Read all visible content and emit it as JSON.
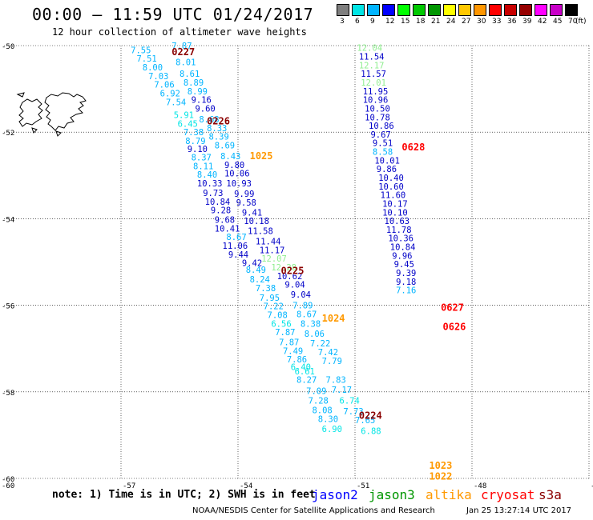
{
  "header": {
    "title": "00:00 – 11:59 UTC 01/24/2017",
    "subtitle": "12 hour collection of altimeter wave heights"
  },
  "legend": {
    "items": [
      {
        "label": "3",
        "color": "#7f7f7f"
      },
      {
        "label": "6",
        "color": "#00e5e5"
      },
      {
        "label": "9",
        "color": "#00b4ff"
      },
      {
        "label": "12",
        "color": "#0000ff"
      },
      {
        "label": "15",
        "color": "#00ff00"
      },
      {
        "label": "18",
        "color": "#00c800"
      },
      {
        "label": "21",
        "color": "#009600"
      },
      {
        "label": "24",
        "color": "#ffff00"
      },
      {
        "label": "27",
        "color": "#ffc800"
      },
      {
        "label": "30",
        "color": "#ff9600"
      },
      {
        "label": "33",
        "color": "#ff0000"
      },
      {
        "label": "36",
        "color": "#c80000"
      },
      {
        "label": "39",
        "color": "#960000"
      },
      {
        "label": "42",
        "color": "#ff00ff"
      },
      {
        "label": "45",
        "color": "#c800c8"
      },
      {
        "label": "70",
        "color": "#000000"
      }
    ],
    "unit": "(ft)"
  },
  "axes": {
    "lat_ticks": [
      {
        "label": "-50",
        "lat": -50
      },
      {
        "label": "-52",
        "lat": -52
      },
      {
        "label": "-54",
        "lat": -54
      },
      {
        "label": "-56",
        "lat": -56
      },
      {
        "label": "-58",
        "lat": -58
      },
      {
        "label": "-60",
        "lat": -60
      }
    ],
    "lon_ticks": [
      {
        "label": "-57",
        "lon": -57
      },
      {
        "label": "-54",
        "lon": -54
      },
      {
        "label": "-51",
        "lon": -51
      },
      {
        "label": "-48",
        "lon": -48
      },
      {
        "label": "-45",
        "lon": -45
      }
    ],
    "lat_range": [
      -60,
      -50
    ],
    "lon_range": [
      -60,
      -45
    ],
    "grid": true
  },
  "tracks": [
    {
      "satellite": "jason3",
      "label": "0227",
      "label_lat": -50.15,
      "label_lon": -55.7,
      "label_color": "#8b0000"
    },
    {
      "satellite": "jason3",
      "label": "0226",
      "label_lat": -51.75,
      "label_lon": -54.8,
      "label_color": "#8b0000"
    },
    {
      "satellite": "altika",
      "label": "1025",
      "label_lat": -52.55,
      "label_lon": -53.7,
      "label_color": "#ff9900"
    },
    {
      "satellite": "jason3",
      "label": "0225",
      "label_lat": -55.2,
      "label_lon": -52.9,
      "label_color": "#8b0000"
    },
    {
      "satellite": "altika",
      "label": "1024",
      "label_lat": -56.3,
      "label_lon": -51.85,
      "label_color": "#ff9900"
    },
    {
      "satellite": "jason3",
      "label": "0224",
      "label_lat": -58.55,
      "label_lon": -50.9,
      "label_color": "#8b0000"
    },
    {
      "satellite": "altika",
      "label": "1023",
      "label_lat": -59.7,
      "label_lon": -49.1,
      "label_color": "#ff9900"
    },
    {
      "satellite": "altika",
      "label": "1022",
      "label_lat": -59.95,
      "label_lon": -49.1,
      "label_color": "#ff9900"
    },
    {
      "satellite": "cryosat",
      "label": "0628",
      "label_lat": -52.35,
      "label_lon": -49.8,
      "label_color": "#ff0000"
    },
    {
      "satellite": "cryosat",
      "label": "0627",
      "label_lat": -56.05,
      "label_lon": -48.8,
      "label_color": "#ff0000"
    },
    {
      "satellite": "cryosat",
      "label": "0626",
      "label_lat": -56.5,
      "label_lon": -48.75,
      "label_color": "#ff0000"
    }
  ],
  "observations": [
    {
      "value": "7.87",
      "lat": -50.0,
      "lon": -55.7,
      "color": "#00b4ff"
    },
    {
      "value": "7.55",
      "lat": -50.1,
      "lon": -56.75,
      "color": "#00b4ff"
    },
    {
      "value": "7.51",
      "lat": -50.3,
      "lon": -56.6,
      "color": "#00b4ff"
    },
    {
      "value": "8.01",
      "lat": -50.38,
      "lon": -55.6,
      "color": "#00b4ff"
    },
    {
      "value": "8.00",
      "lat": -50.5,
      "lon": -56.45,
      "color": "#00b4ff"
    },
    {
      "value": "8.61",
      "lat": -50.65,
      "lon": -55.5,
      "color": "#00b4ff"
    },
    {
      "value": "7.03",
      "lat": -50.7,
      "lon": -56.3,
      "color": "#00b4ff"
    },
    {
      "value": "8.89",
      "lat": -50.85,
      "lon": -55.4,
      "color": "#00b4ff"
    },
    {
      "value": "7.06",
      "lat": -50.9,
      "lon": -56.15,
      "color": "#00b4ff"
    },
    {
      "value": "8.99",
      "lat": -51.05,
      "lon": -55.3,
      "color": "#00b4ff"
    },
    {
      "value": "6.92",
      "lat": -51.1,
      "lon": -56.0,
      "color": "#00b4ff"
    },
    {
      "value": "9.16",
      "lat": -51.25,
      "lon": -55.2,
      "color": "#0000c8"
    },
    {
      "value": "7.54",
      "lat": -51.3,
      "lon": -55.85,
      "color": "#00b4ff"
    },
    {
      "value": "9.60",
      "lat": -51.45,
      "lon": -55.1,
      "color": "#0000c8"
    },
    {
      "value": "5.91",
      "lat": -51.6,
      "lon": -55.65,
      "color": "#00e5e5"
    },
    {
      "value": "8.68",
      "lat": -51.7,
      "lon": -55.0,
      "color": "#00b4ff"
    },
    {
      "value": "6.45",
      "lat": -51.8,
      "lon": -55.55,
      "color": "#00e5e5"
    },
    {
      "value": "8.33",
      "lat": -51.9,
      "lon": -54.8,
      "color": "#00b4ff"
    },
    {
      "value": "7.38",
      "lat": -52.0,
      "lon": -55.4,
      "color": "#00b4ff"
    },
    {
      "value": "8.39",
      "lat": -52.1,
      "lon": -54.75,
      "color": "#00b4ff"
    },
    {
      "value": "8.79",
      "lat": -52.2,
      "lon": -55.35,
      "color": "#00b4ff"
    },
    {
      "value": "8.69",
      "lat": -52.3,
      "lon": -54.6,
      "color": "#00b4ff"
    },
    {
      "value": "9.10",
      "lat": -52.38,
      "lon": -55.3,
      "color": "#0000c8"
    },
    {
      "value": "8.43",
      "lat": -52.55,
      "lon": -54.45,
      "color": "#00b4ff"
    },
    {
      "value": "8.37",
      "lat": -52.58,
      "lon": -55.2,
      "color": "#00b4ff"
    },
    {
      "value": "9.80",
      "lat": -52.75,
      "lon": -54.35,
      "color": "#0000c8"
    },
    {
      "value": "8.11",
      "lat": -52.78,
      "lon": -55.15,
      "color": "#00b4ff"
    },
    {
      "value": "10.06",
      "lat": -52.95,
      "lon": -54.35,
      "color": "#0000c8"
    },
    {
      "value": "8.40",
      "lat": -52.98,
      "lon": -55.05,
      "color": "#00b4ff"
    },
    {
      "value": "10.33",
      "lat": -53.18,
      "lon": -55.05,
      "color": "#0000c8"
    },
    {
      "value": "10.93",
      "lat": -53.18,
      "lon": -54.3,
      "color": "#0000c8"
    },
    {
      "value": "9.73",
      "lat": -53.4,
      "lon": -54.9,
      "color": "#0000c8"
    },
    {
      "value": "9.99",
      "lat": -53.42,
      "lon": -54.1,
      "color": "#0000c8"
    },
    {
      "value": "10.84",
      "lat": -53.6,
      "lon": -54.85,
      "color": "#0000c8"
    },
    {
      "value": "9.58",
      "lat": -53.62,
      "lon": -54.05,
      "color": "#0000c8"
    },
    {
      "value": "9.28",
      "lat": -53.8,
      "lon": -54.7,
      "color": "#0000c8"
    },
    {
      "value": "9.41",
      "lat": -53.85,
      "lon": -53.9,
      "color": "#0000c8"
    },
    {
      "value": "9.68",
      "lat": -54.02,
      "lon": -54.6,
      "color": "#0000c8"
    },
    {
      "value": "10.18",
      "lat": -54.05,
      "lon": -53.85,
      "color": "#0000c8"
    },
    {
      "value": "10.41",
      "lat": -54.22,
      "lon": -54.6,
      "color": "#0000c8"
    },
    {
      "value": "11.58",
      "lat": -54.28,
      "lon": -53.75,
      "color": "#0000c8"
    },
    {
      "value": "8.67",
      "lat": -54.42,
      "lon": -54.3,
      "color": "#00b4ff"
    },
    {
      "value": "11.44",
      "lat": -54.52,
      "lon": -53.55,
      "color": "#0000c8"
    },
    {
      "value": "11.06",
      "lat": -54.62,
      "lon": -54.4,
      "color": "#0000c8"
    },
    {
      "value": "11.17",
      "lat": -54.72,
      "lon": -53.45,
      "color": "#0000c8"
    },
    {
      "value": "9.44",
      "lat": -54.82,
      "lon": -54.25,
      "color": "#0000c8"
    },
    {
      "value": "12.07",
      "lat": -54.92,
      "lon": -53.4,
      "color": "#90ee90"
    },
    {
      "value": "9.42",
      "lat": -55.02,
      "lon": -53.9,
      "color": "#0000c8"
    },
    {
      "value": "12.28",
      "lat": -55.12,
      "lon": -53.15,
      "color": "#90ee90"
    },
    {
      "value": "8.49",
      "lat": -55.18,
      "lon": -53.8,
      "color": "#00b4ff"
    },
    {
      "value": "10.62",
      "lat": -55.32,
      "lon": -53.0,
      "color": "#0000c8"
    },
    {
      "value": "8.24",
      "lat": -55.4,
      "lon": -53.7,
      "color": "#00b4ff"
    },
    {
      "value": "9.04",
      "lat": -55.52,
      "lon": -52.8,
      "color": "#0000c8"
    },
    {
      "value": "7.38",
      "lat": -55.6,
      "lon": -53.55,
      "color": "#00b4ff"
    },
    {
      "value": "9.04",
      "lat": -55.75,
      "lon": -52.65,
      "color": "#0000c8"
    },
    {
      "value": "7.95",
      "lat": -55.82,
      "lon": -53.45,
      "color": "#00b4ff"
    },
    {
      "value": "7.89",
      "lat": -56.0,
      "lon": -52.6,
      "color": "#00b4ff"
    },
    {
      "value": "7.22",
      "lat": -56.02,
      "lon": -53.35,
      "color": "#00b4ff"
    },
    {
      "value": "8.67",
      "lat": -56.2,
      "lon": -52.5,
      "color": "#00b4ff"
    },
    {
      "value": "7.08",
      "lat": -56.22,
      "lon": -53.25,
      "color": "#00b4ff"
    },
    {
      "value": "8.38",
      "lat": -56.42,
      "lon": -52.4,
      "color": "#00b4ff"
    },
    {
      "value": "6.56",
      "lat": -56.42,
      "lon": -53.15,
      "color": "#00e5e5"
    },
    {
      "value": "7.87",
      "lat": -56.62,
      "lon": -53.05,
      "color": "#00b4ff"
    },
    {
      "value": "8.06",
      "lat": -56.65,
      "lon": -52.3,
      "color": "#00b4ff"
    },
    {
      "value": "7.87",
      "lat": -56.85,
      "lon": -52.95,
      "color": "#00b4ff"
    },
    {
      "value": "7.22",
      "lat": -56.88,
      "lon": -52.15,
      "color": "#00b4ff"
    },
    {
      "value": "7.42",
      "lat": -57.08,
      "lon": -51.95,
      "color": "#00b4ff"
    },
    {
      "value": "7.49",
      "lat": -57.05,
      "lon": -52.85,
      "color": "#00b4ff"
    },
    {
      "value": "7.79",
      "lat": -57.28,
      "lon": -51.85,
      "color": "#00b4ff"
    },
    {
      "value": "7.86",
      "lat": -57.25,
      "lon": -52.75,
      "color": "#00b4ff"
    },
    {
      "value": "6.40",
      "lat": -57.42,
      "lon": -52.65,
      "color": "#00e5e5"
    },
    {
      "value": "6.61",
      "lat": -57.52,
      "lon": -52.55,
      "color": "#00e5e5"
    },
    {
      "value": "7.83",
      "lat": -57.72,
      "lon": -51.75,
      "color": "#00b4ff"
    },
    {
      "value": "8.27",
      "lat": -57.72,
      "lon": -52.5,
      "color": "#00b4ff"
    },
    {
      "value": "7.17",
      "lat": -57.95,
      "lon": -51.6,
      "color": "#00b4ff"
    },
    {
      "value": "7.09",
      "lat": -57.98,
      "lon": -52.25,
      "color": "#00b4ff"
    },
    {
      "value": "6.74",
      "lat": -58.2,
      "lon": -51.4,
      "color": "#00e5e5"
    },
    {
      "value": "7.28",
      "lat": -58.2,
      "lon": -52.2,
      "color": "#00b4ff"
    },
    {
      "value": "8.08",
      "lat": -58.42,
      "lon": -52.1,
      "color": "#00b4ff"
    },
    {
      "value": "7.73",
      "lat": -58.45,
      "lon": -51.3,
      "color": "#00b4ff"
    },
    {
      "value": "8.30",
      "lat": -58.62,
      "lon": -51.95,
      "color": "#00b4ff"
    },
    {
      "value": "7.65",
      "lat": -58.65,
      "lon": -51.0,
      "color": "#00b4ff"
    },
    {
      "value": "6.90",
      "lat": -58.85,
      "lon": -51.85,
      "color": "#00e5e5"
    },
    {
      "value": "6.88",
      "lat": -58.9,
      "lon": -50.85,
      "color": "#00e5e5"
    },
    {
      "value": "12.04",
      "lat": -50.05,
      "lon": -50.95,
      "color": "#90ee90"
    },
    {
      "value": "11.54",
      "lat": -50.25,
      "lon": -50.9,
      "color": "#0000c8"
    },
    {
      "value": "12.17",
      "lat": -50.45,
      "lon": -50.9,
      "color": "#90ee90"
    },
    {
      "value": "11.57",
      "lat": -50.65,
      "lon": -50.85,
      "color": "#0000c8"
    },
    {
      "value": "12.01",
      "lat": -50.85,
      "lon": -50.85,
      "color": "#90ee90"
    },
    {
      "value": "11.95",
      "lat": -51.05,
      "lon": -50.8,
      "color": "#0000c8"
    },
    {
      "value": "10.96",
      "lat": -51.25,
      "lon": -50.8,
      "color": "#0000c8"
    },
    {
      "value": "10.50",
      "lat": -51.45,
      "lon": -50.75,
      "color": "#0000c8"
    },
    {
      "value": "10.78",
      "lat": -51.65,
      "lon": -50.75,
      "color": "#0000c8"
    },
    {
      "value": "10.86",
      "lat": -51.85,
      "lon": -50.65,
      "color": "#0000c8"
    },
    {
      "value": "9.67",
      "lat": -52.05,
      "lon": -50.6,
      "color": "#0000c8"
    },
    {
      "value": "9.51",
      "lat": -52.25,
      "lon": -50.55,
      "color": "#0000c8"
    },
    {
      "value": "8.58",
      "lat": -52.45,
      "lon": -50.55,
      "color": "#00b4ff"
    },
    {
      "value": "10.01",
      "lat": -52.65,
      "lon": -50.5,
      "color": "#0000c8"
    },
    {
      "value": "9.86",
      "lat": -52.85,
      "lon": -50.45,
      "color": "#0000c8"
    },
    {
      "value": "10.40",
      "lat": -53.05,
      "lon": -50.4,
      "color": "#0000c8"
    },
    {
      "value": "10.60",
      "lat": -53.25,
      "lon": -50.4,
      "color": "#0000c8"
    },
    {
      "value": "11.60",
      "lat": -53.45,
      "lon": -50.35,
      "color": "#0000c8"
    },
    {
      "value": "10.17",
      "lat": -53.65,
      "lon": -50.3,
      "color": "#0000c8"
    },
    {
      "value": "10.10",
      "lat": -53.85,
      "lon": -50.3,
      "color": "#0000c8"
    },
    {
      "value": "10.63",
      "lat": -54.05,
      "lon": -50.25,
      "color": "#0000c8"
    },
    {
      "value": "11.78",
      "lat": -54.25,
      "lon": -50.2,
      "color": "#0000c8"
    },
    {
      "value": "10.36",
      "lat": -54.45,
      "lon": -50.15,
      "color": "#0000c8"
    },
    {
      "value": "10.84",
      "lat": -54.65,
      "lon": -50.1,
      "color": "#0000c8"
    },
    {
      "value": "9.96",
      "lat": -54.85,
      "lon": -50.05,
      "color": "#0000c8"
    },
    {
      "value": "9.45",
      "lat": -55.05,
      "lon": -50.0,
      "color": "#0000c8"
    },
    {
      "value": "9.39",
      "lat": -55.25,
      "lon": -49.95,
      "color": "#0000c8"
    },
    {
      "value": "9.18",
      "lat": -55.45,
      "lon": -49.95,
      "color": "#0000c8"
    },
    {
      "value": "7.16",
      "lat": -55.65,
      "lon": -49.95,
      "color": "#00b4ff"
    }
  ],
  "footer": {
    "note": "note: 1) Time is in UTC; 2) SWH is in feet",
    "satellites": [
      {
        "name": "jason2",
        "color": "#0000ff"
      },
      {
        "name": "jason3",
        "color": "#009600"
      },
      {
        "name": "altika",
        "color": "#ff9900"
      },
      {
        "name": "cryosat",
        "color": "#ff0000"
      },
      {
        "name": "s3a",
        "color": "#8b0000"
      }
    ],
    "credit": "NOAA/NESDIS Center for Satellite Applications and Research",
    "timestamp": "Jan 25 13:27:14 UTC 2017"
  }
}
